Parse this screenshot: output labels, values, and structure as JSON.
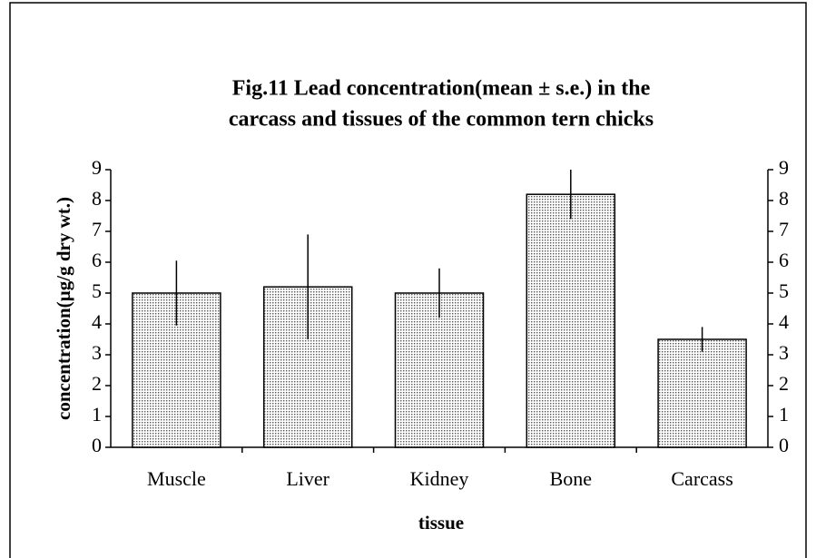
{
  "chart_data": {
    "type": "bar",
    "title": [
      "Fig.11  Lead concentration(mean ± s.e.) in the",
      "carcass and tissues of the common tern chicks"
    ],
    "x_label": "tissue",
    "y_label": "concentration(µg/g dry wt.)",
    "categories": [
      "Muscle",
      "Liver",
      "Kidney",
      "Bone",
      "Carcass"
    ],
    "series": [
      {
        "name": "mean",
        "color": "#c4c4c4",
        "values": [
          5.0,
          5.2,
          5.0,
          8.2,
          3.5
        ],
        "errors": [
          1.05,
          1.7,
          0.8,
          0.8,
          0.4
        ]
      }
    ],
    "ylim": [
      0,
      9
    ],
    "yticks": [
      0,
      1,
      2,
      3,
      4,
      5,
      6,
      7,
      8,
      9
    ],
    "y2lim": [
      0,
      9
    ],
    "y2ticks": [
      0,
      1,
      2,
      3,
      4,
      5,
      6,
      7,
      8,
      9
    ],
    "grid": false
  }
}
